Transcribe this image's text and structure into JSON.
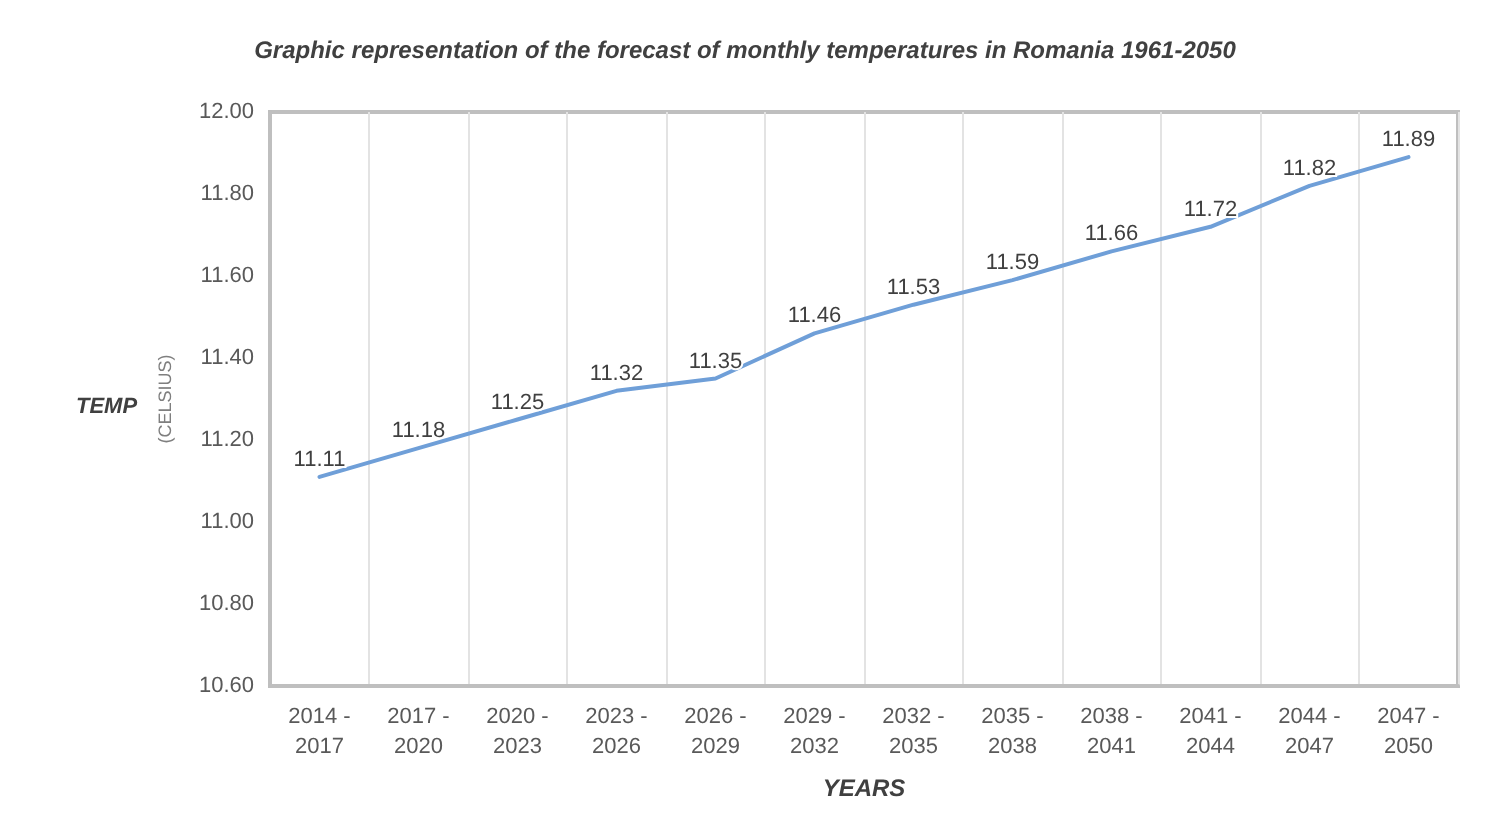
{
  "chart_data": {
    "type": "line",
    "title": "Graphic representation of the forecast of monthly temperatures in Romania 1961-2050",
    "categories": [
      "2014 - 2017",
      "2017 - 2020",
      "2020 - 2023",
      "2023 - 2026",
      "2026 - 2029",
      "2029 - 2032",
      "2032 - 2035",
      "2035 - 2038",
      "2038 - 2041",
      "2041 - 2044",
      "2044 - 2047",
      "2047 - 2050"
    ],
    "series": [
      {
        "color": "#6f9fd8",
        "values": [
          11.11,
          11.18,
          11.25,
          11.32,
          11.35,
          11.46,
          11.53,
          11.59,
          11.66,
          11.72,
          11.82,
          11.89
        ]
      }
    ],
    "xlabel": "YEARS",
    "ylabel": "(CELSIUS)",
    "annotations": [
      "TEMP"
    ],
    "ylim": [
      10.6,
      12.0
    ],
    "yticks": [
      {
        "value": 10.6,
        "label": "10.60"
      },
      {
        "value": 10.8,
        "label": "10.80"
      },
      {
        "value": 11.0,
        "label": "11.00"
      },
      {
        "value": 11.2,
        "label": "11.20"
      },
      {
        "value": 11.4,
        "label": "11.40"
      },
      {
        "value": 11.6,
        "label": "11.60"
      },
      {
        "value": 11.8,
        "label": "11.80"
      },
      {
        "value": 12.0,
        "label": "12.00"
      }
    ],
    "grid": "x",
    "data_labels": true,
    "marker": "none",
    "line_style": "solid"
  }
}
